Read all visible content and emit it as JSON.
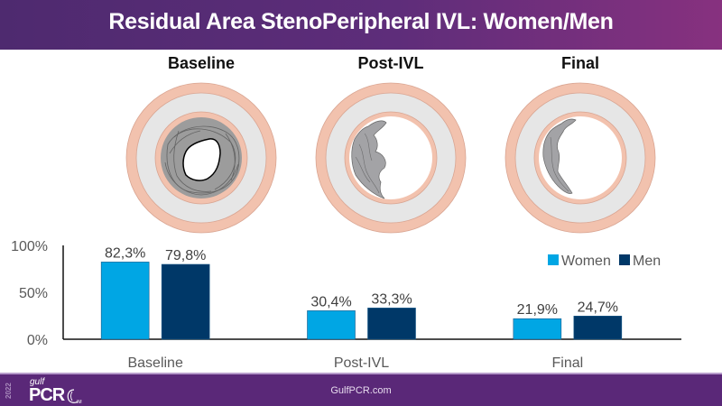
{
  "header": {
    "title": "Residual Area StenoPeripheral IVL: Women/Men"
  },
  "panels": [
    {
      "label": "Baseline",
      "plaque_extent": "circumferential"
    },
    {
      "label": "Post-IVL",
      "plaque_extent": "partial"
    },
    {
      "label": "Final",
      "plaque_extent": "thin-partial"
    }
  ],
  "colors": {
    "women": "#00a6e4",
    "men": "#003868",
    "adventitia": "#f2c2ae",
    "media": "#e4e4e4",
    "plaque": "#9a9a9a",
    "header_start": "#4e2a6f",
    "header_end": "#87317f",
    "footer": "#5a2878"
  },
  "chart_data": {
    "type": "bar",
    "title": "",
    "xlabel": "",
    "ylabel": "",
    "categories": [
      "Baseline",
      "Post-IVL",
      "Final"
    ],
    "series": [
      {
        "name": "Women",
        "values": [
          82.3,
          30.4,
          21.9
        ],
        "labels": [
          "82,3%",
          "30,4%",
          "21,9%"
        ]
      },
      {
        "name": "Men",
        "values": [
          79.8,
          33.3,
          24.7
        ],
        "labels": [
          "79,8%",
          "33,3%",
          "24,7%"
        ]
      }
    ],
    "ylim": [
      0,
      100
    ],
    "yticks": [
      0,
      50,
      100
    ],
    "ytick_labels": [
      "0%",
      "50%",
      "100%"
    ],
    "grid": false,
    "legend": {
      "position": "top-right",
      "entries": [
        "Women",
        "Men"
      ]
    }
  },
  "footer": {
    "url": "GulfPCR.com",
    "logo": {
      "year": "2022",
      "gulf": "gulf",
      "pcr": "PCR",
      "sub": "GIM"
    }
  }
}
